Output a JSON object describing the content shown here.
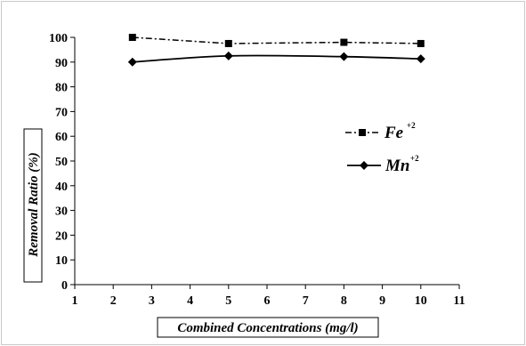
{
  "chart_data": {
    "type": "line",
    "xlabel": "Combined Concentrations  (mg/l)",
    "ylabel": "Removal Ratio (%)",
    "xlim": [
      1,
      11
    ],
    "ylim": [
      0,
      100
    ],
    "x_ticks": [
      "1",
      "2",
      "3",
      "4",
      "5",
      "6",
      "7",
      "8",
      "9",
      "10",
      "11"
    ],
    "y_ticks": [
      "0",
      "10",
      "20",
      "30",
      "40",
      "50",
      "60",
      "70",
      "80",
      "90",
      "100"
    ],
    "grid": false,
    "legend_position": "right",
    "series": [
      {
        "name": "Fe",
        "name_superscript": "+2",
        "x": [
          2.5,
          5,
          8,
          10
        ],
        "y": [
          100,
          97.5,
          98,
          97.5
        ],
        "marker": "square",
        "line_style": "dash-dot",
        "color": "#000000"
      },
      {
        "name": "Mn",
        "name_superscript": "+2",
        "x": [
          2.5,
          5,
          8,
          10
        ],
        "y": [
          90,
          92.5,
          92.2,
          91.3
        ],
        "marker": "diamond",
        "line_style": "solid",
        "color": "#000000"
      }
    ]
  }
}
